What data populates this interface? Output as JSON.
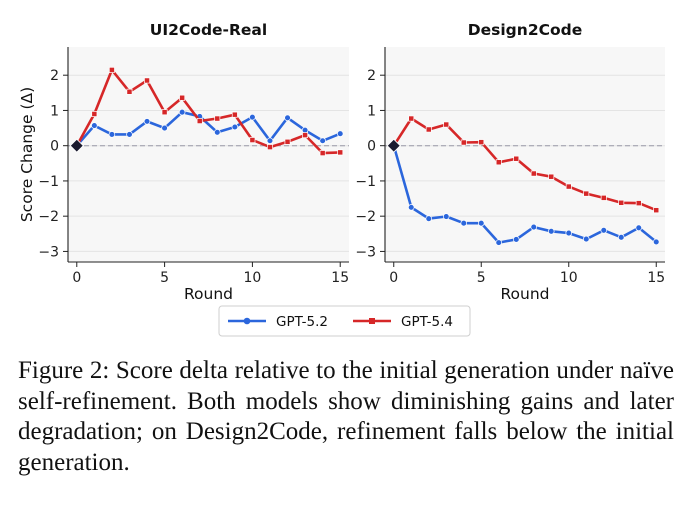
{
  "chart_data": [
    {
      "type": "line",
      "title": "UI2Code-Real",
      "xlabel": "Round",
      "ylabel": "Score Change (Δ)",
      "xlim": [
        -0.5,
        15.5
      ],
      "ylim": [
        -3.3,
        2.8
      ],
      "xticks": [
        "0",
        "5",
        "10",
        "15"
      ],
      "yticks": [
        "−3",
        "−2",
        "−1",
        "0",
        "1",
        "2"
      ],
      "grid": true,
      "x": [
        0,
        1,
        2,
        3,
        4,
        5,
        6,
        7,
        8,
        9,
        10,
        11,
        12,
        13,
        14,
        15
      ],
      "series": [
        {
          "name": "GPT-5.2",
          "color": "#2b66dc",
          "marker": "circle",
          "values": [
            0,
            0.57,
            0.32,
            0.32,
            0.69,
            0.5,
            0.95,
            0.83,
            0.38,
            0.53,
            0.81,
            0.14,
            0.79,
            0.44,
            0.14,
            0.34
          ]
        },
        {
          "name": "GPT-5.4",
          "color": "#d62728",
          "marker": "square",
          "values": [
            0,
            0.9,
            2.15,
            1.53,
            1.85,
            0.95,
            1.36,
            0.7,
            0.77,
            0.88,
            0.16,
            -0.04,
            0.11,
            0.3,
            -0.21,
            -0.19
          ]
        }
      ]
    },
    {
      "type": "line",
      "title": "Design2Code",
      "xlabel": "Round",
      "ylabel": "",
      "xlim": [
        -0.5,
        15.5
      ],
      "ylim": [
        -3.3,
        2.8
      ],
      "xticks": [
        "0",
        "5",
        "10",
        "15"
      ],
      "yticks": [
        "−3",
        "−2",
        "−1",
        "0",
        "1",
        "2"
      ],
      "grid": true,
      "x": [
        0,
        1,
        2,
        3,
        4,
        5,
        6,
        7,
        8,
        9,
        10,
        11,
        12,
        13,
        14,
        15
      ],
      "series": [
        {
          "name": "GPT-5.2",
          "color": "#2b66dc",
          "marker": "circle",
          "values": [
            0,
            -1.75,
            -2.07,
            -2.01,
            -2.2,
            -2.2,
            -2.75,
            -2.66,
            -2.31,
            -2.43,
            -2.48,
            -2.65,
            -2.4,
            -2.6,
            -2.33,
            -2.73
          ]
        },
        {
          "name": "GPT-5.4",
          "color": "#d62728",
          "marker": "square",
          "values": [
            0,
            0.77,
            0.46,
            0.6,
            0.09,
            0.1,
            -0.47,
            -0.37,
            -0.79,
            -0.88,
            -1.16,
            -1.36,
            -1.48,
            -1.62,
            -1.63,
            -1.83
          ]
        }
      ]
    }
  ],
  "legend": {
    "placement": "bottom-center",
    "entries": [
      {
        "label": "GPT-5.2",
        "color": "#2b66dc",
        "marker": "circle"
      },
      {
        "label": "GPT-5.4",
        "color": "#d62728",
        "marker": "square"
      }
    ]
  },
  "initial_marker_color": "#1a1a2e",
  "caption": "Figure 2: Score delta relative to the initial generation under naïve self-refinement. Both models show diminishing gains and later degradation; on Design2Code, refinement falls below the initial generation."
}
